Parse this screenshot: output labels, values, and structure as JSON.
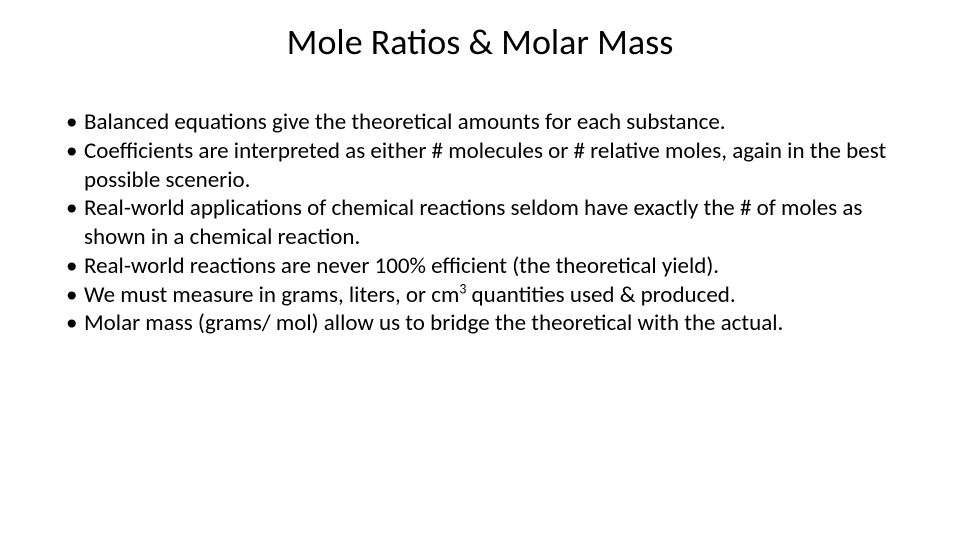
{
  "title": "Mole Ratios & Molar Mass",
  "title_fontsize": 36,
  "body_fontsize": 23,
  "text_color": "#000000",
  "background_color": "#ffffff",
  "bullets": [
    "Balanced equations give the theoretical amounts for each substance.",
    "Coefficients are interpreted as either # molecules or # relative moles, again in the best possible scenerio.",
    "Real-world applications of chemical reactions seldom have exactly the # of moles as shown in a chemical reaction.",
    "Real-world reactions are never 100% efficient (the theoretical yield).",
    "We must measure in grams, liters, or cm³ quantities used & produced.",
    "Molar mass (grams/ mol) allow us to bridge the theoretical with the actual."
  ],
  "bullet5_pre": "We must measure in grams, liters, or cm",
  "bullet5_sup": "3",
  "bullet5_post": " quantities used & produced."
}
